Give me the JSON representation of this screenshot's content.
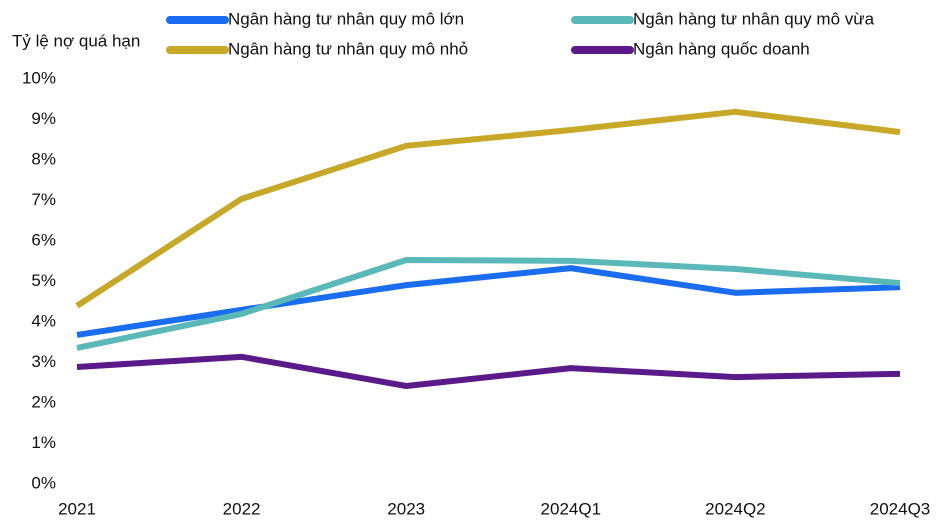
{
  "chart_data": {
    "type": "line",
    "y_label": "Tỷ lệ nợ quá hạn",
    "categories": [
      "2021",
      "2022",
      "2023",
      "2024Q1",
      "2024Q2",
      "2024Q3"
    ],
    "series": [
      {
        "name": "Ngân hàng tư nhân quy mô lớn",
        "color": "#1a6cf0",
        "values": [
          3.68,
          4.3,
          4.91,
          5.33,
          4.72,
          4.86
        ]
      },
      {
        "name": "Ngân hàng tư nhân quy mô vừa",
        "color": "#5bb8b8",
        "values": [
          3.36,
          4.2,
          5.53,
          5.51,
          5.31,
          4.96
        ]
      },
      {
        "name": "Ngân hàng tư nhân quy mô nhỏ",
        "color": "#c8a828",
        "values": [
          4.4,
          7.04,
          8.35,
          8.74,
          9.19,
          8.69
        ]
      },
      {
        "name": "Ngân hàng quốc doanh",
        "color": "#5a1a8a",
        "values": [
          2.89,
          3.14,
          2.42,
          2.86,
          2.64,
          2.72
        ]
      }
    ],
    "ylim": [
      0,
      10
    ],
    "yticks": [
      {
        "value": 0,
        "label": "0%"
      },
      {
        "value": 1,
        "label": "1%"
      },
      {
        "value": 2,
        "label": "2%"
      },
      {
        "value": 3,
        "label": "3%"
      },
      {
        "value": 4,
        "label": "4%"
      },
      {
        "value": 5,
        "label": "5%"
      },
      {
        "value": 6,
        "label": "6%"
      },
      {
        "value": 7,
        "label": "7%"
      },
      {
        "value": 8,
        "label": "8%"
      },
      {
        "value": 9,
        "label": "9%"
      },
      {
        "value": 10,
        "label": "10%"
      }
    ],
    "grid": false
  }
}
